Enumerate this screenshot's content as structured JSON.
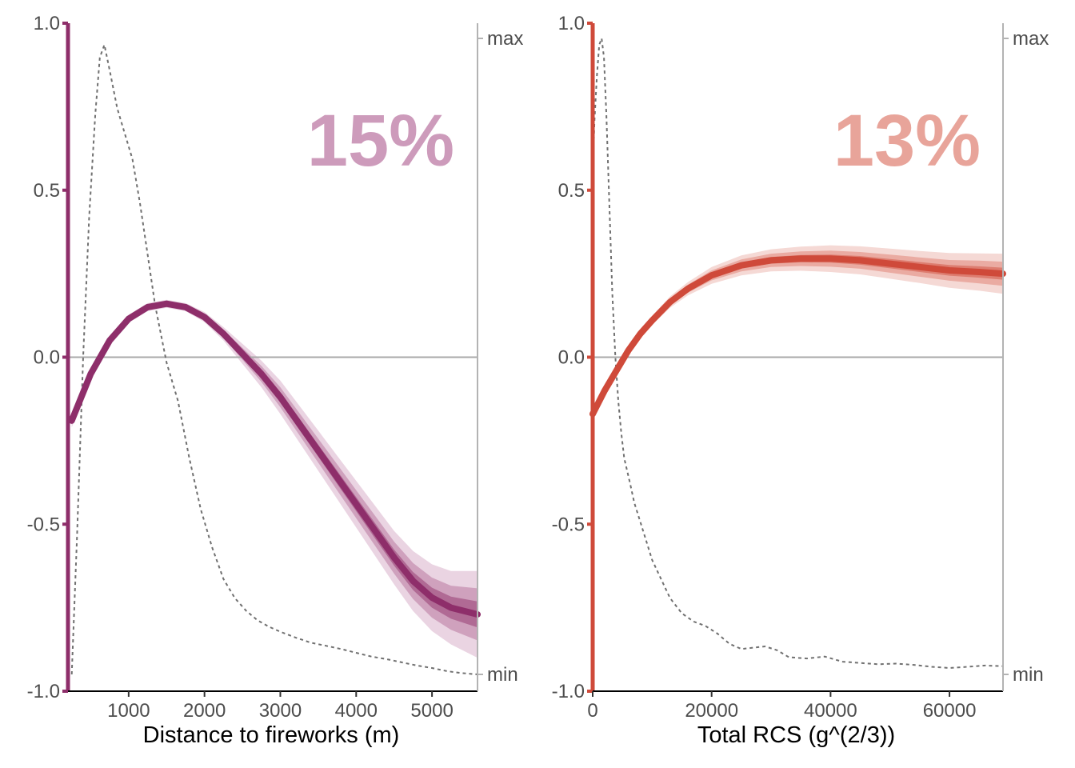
{
  "chart_data": [
    {
      "type": "line",
      "xlabel": "Distance to fireworks (m)",
      "ylabel": "",
      "xlim": [
        200,
        5600
      ],
      "ylim": [
        -1.0,
        1.0
      ],
      "x_ticks": [
        "1000",
        "2000",
        "3000",
        "4000",
        "5000"
      ],
      "x_tick_values": [
        1000,
        2000,
        3000,
        4000,
        5000
      ],
      "y_ticks": [
        "-1.0",
        "-0.5",
        "0.0",
        "0.5",
        "1.0"
      ],
      "y_tick_values": [
        -1.0,
        -0.5,
        0.0,
        0.5,
        1.0
      ],
      "secondary_y_ticks": [
        "min",
        "max"
      ],
      "annotation": "15%",
      "reference_line_y": 0,
      "colors": {
        "main": "#8e2e6a",
        "band_inner": "#b06a94",
        "band_mid": "#cfa1bd",
        "band_outer": "#ead4e2",
        "annotation": "#cd9bbb",
        "density": "#707070"
      },
      "series": [
        {
          "kind": "smooth",
          "x": [
            250,
            500,
            750,
            1000,
            1250,
            1500,
            1750,
            2000,
            2250,
            2500,
            2750,
            3000,
            3250,
            3500,
            3750,
            4000,
            4250,
            4500,
            4750,
            5000,
            5250,
            5600
          ],
          "y": [
            -0.19,
            -0.05,
            0.05,
            0.115,
            0.15,
            0.16,
            0.15,
            0.12,
            0.07,
            0.01,
            -0.05,
            -0.12,
            -0.2,
            -0.28,
            -0.36,
            -0.44,
            -0.52,
            -0.6,
            -0.67,
            -0.72,
            -0.75,
            -0.77
          ],
          "band_outer_halfwidth": [
            0.02,
            0.015,
            0.012,
            0.012,
            0.012,
            0.012,
            0.012,
            0.015,
            0.02,
            0.03,
            0.04,
            0.05,
            0.055,
            0.06,
            0.065,
            0.07,
            0.075,
            0.08,
            0.09,
            0.1,
            0.11,
            0.13
          ],
          "band_mid_halfwidth": [
            0.012,
            0.009,
            0.007,
            0.007,
            0.007,
            0.007,
            0.007,
            0.009,
            0.012,
            0.018,
            0.024,
            0.03,
            0.033,
            0.036,
            0.039,
            0.042,
            0.045,
            0.048,
            0.054,
            0.06,
            0.066,
            0.078
          ],
          "band_inner_halfwidth": [
            0.006,
            0.005,
            0.004,
            0.004,
            0.004,
            0.004,
            0.004,
            0.005,
            0.006,
            0.009,
            0.012,
            0.015,
            0.017,
            0.018,
            0.02,
            0.021,
            0.023,
            0.024,
            0.027,
            0.03,
            0.033,
            0.039
          ]
        },
        {
          "kind": "density",
          "x": [
            250,
            320,
            400,
            480,
            560,
            620,
            680,
            750,
            850,
            950,
            1050,
            1150,
            1250,
            1350,
            1500,
            1650,
            1800,
            1950,
            2100,
            2250,
            2400,
            2550,
            2700,
            2850,
            3000,
            3200,
            3400,
            3600,
            3800,
            4000,
            4200,
            4400,
            4600,
            4800,
            5000,
            5200,
            5400,
            5600
          ],
          "y": [
            0.0,
            0.22,
            0.5,
            0.72,
            0.88,
            0.97,
            0.99,
            0.95,
            0.89,
            0.85,
            0.81,
            0.74,
            0.66,
            0.58,
            0.49,
            0.43,
            0.34,
            0.26,
            0.2,
            0.15,
            0.12,
            0.1,
            0.085,
            0.075,
            0.067,
            0.058,
            0.05,
            0.045,
            0.04,
            0.034,
            0.028,
            0.024,
            0.019,
            0.014,
            0.01,
            0.005,
            0.002,
            0.0
          ]
        }
      ]
    },
    {
      "type": "line",
      "xlabel": "Total RCS (g^(2/3))",
      "ylabel": "",
      "xlim": [
        0,
        69000
      ],
      "ylim": [
        -1.0,
        1.0
      ],
      "x_ticks": [
        "0",
        "20000",
        "40000",
        "60000"
      ],
      "x_tick_values": [
        0,
        20000,
        40000,
        60000
      ],
      "y_ticks": [
        "-1.0",
        "-0.5",
        "0.0",
        "0.5",
        "1.0"
      ],
      "y_tick_values": [
        -1.0,
        -0.5,
        0.0,
        0.5,
        1.0
      ],
      "secondary_y_ticks": [
        "min",
        "max"
      ],
      "annotation": "13%",
      "reference_line_y": 0,
      "colors": {
        "main": "#cf4a3a",
        "band_inner": "#dd7d70",
        "band_mid": "#eaaba2",
        "band_outer": "#f5d9d5",
        "annotation": "#e8a49a",
        "density": "#707070"
      },
      "series": [
        {
          "kind": "smooth",
          "x": [
            0,
            2000,
            4000,
            6000,
            8000,
            10000,
            13000,
            16000,
            20000,
            25000,
            30000,
            35000,
            40000,
            45000,
            50000,
            55000,
            60000,
            65000,
            69000
          ],
          "y": [
            -0.17,
            -0.1,
            -0.04,
            0.02,
            0.07,
            0.11,
            0.165,
            0.205,
            0.245,
            0.275,
            0.29,
            0.295,
            0.295,
            0.29,
            0.28,
            0.27,
            0.26,
            0.255,
            0.25
          ],
          "band_outer_halfwidth": [
            0.012,
            0.01,
            0.01,
            0.01,
            0.012,
            0.014,
            0.017,
            0.02,
            0.025,
            0.03,
            0.033,
            0.036,
            0.04,
            0.042,
            0.045,
            0.048,
            0.052,
            0.056,
            0.06
          ],
          "band_mid_halfwidth": [
            0.007,
            0.006,
            0.006,
            0.006,
            0.007,
            0.008,
            0.01,
            0.012,
            0.015,
            0.018,
            0.02,
            0.022,
            0.024,
            0.025,
            0.027,
            0.029,
            0.031,
            0.034,
            0.036
          ],
          "band_inner_halfwidth": [
            0.004,
            0.003,
            0.003,
            0.003,
            0.004,
            0.004,
            0.005,
            0.006,
            0.008,
            0.009,
            0.01,
            0.011,
            0.012,
            0.013,
            0.014,
            0.015,
            0.016,
            0.017,
            0.018
          ]
        },
        {
          "kind": "density",
          "x": [
            0,
            300,
            700,
            1100,
            1500,
            1900,
            2300,
            2800,
            3300,
            3800,
            4300,
            4800,
            5300,
            5800,
            6300,
            7000,
            8000,
            9000,
            10000,
            11500,
            13000,
            15000,
            17000,
            19000,
            21000,
            23000,
            25000,
            27000,
            29000,
            31000,
            33000,
            36000,
            39000,
            42000,
            45000,
            48000,
            51000,
            54000,
            57000,
            60000,
            63000,
            66000,
            69000
          ],
          "y": [
            0.78,
            0.87,
            0.94,
            0.99,
            1.0,
            0.97,
            0.88,
            0.74,
            0.6,
            0.5,
            0.43,
            0.38,
            0.34,
            0.32,
            0.3,
            0.27,
            0.24,
            0.21,
            0.18,
            0.15,
            0.12,
            0.096,
            0.083,
            0.076,
            0.064,
            0.048,
            0.04,
            0.042,
            0.044,
            0.038,
            0.027,
            0.025,
            0.028,
            0.02,
            0.018,
            0.016,
            0.017,
            0.015,
            0.012,
            0.01,
            0.012,
            0.014,
            0.013
          ]
        }
      ]
    }
  ]
}
